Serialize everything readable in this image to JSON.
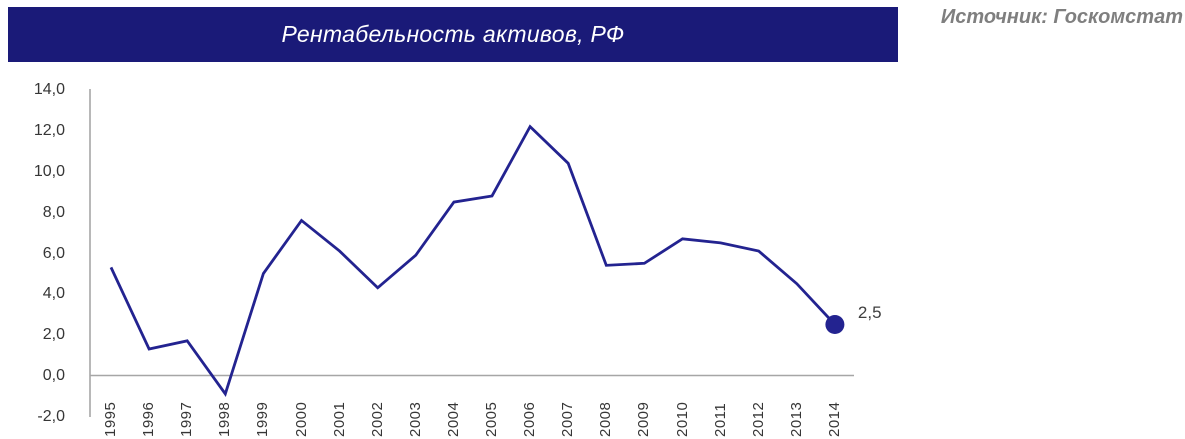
{
  "header": {
    "title": "Рентабельность активов, РФ",
    "source": "Источник: Госкомстат"
  },
  "chart_data": {
    "type": "line",
    "title": "Рентабельность активов, РФ",
    "categories": [
      "1995",
      "1996",
      "1997",
      "1998",
      "1999",
      "2000",
      "2001",
      "2002",
      "2003",
      "2004",
      "2005",
      "2006",
      "2007",
      "2008",
      "2009",
      "2010",
      "2011",
      "2012",
      "2013",
      "2014"
    ],
    "values": [
      5.3,
      1.3,
      1.7,
      -0.9,
      5.0,
      7.6,
      6.1,
      4.3,
      5.9,
      8.5,
      8.8,
      12.2,
      10.4,
      5.4,
      5.5,
      6.7,
      6.5,
      6.1,
      4.5,
      2.5
    ],
    "xlabel": "",
    "ylabel": "",
    "ylim": [
      -2,
      14
    ],
    "yticks": [
      14,
      12,
      10,
      8,
      6,
      4,
      2,
      0,
      -2
    ],
    "ytick_labels": [
      "14,0",
      "12,0",
      "10,0",
      "8,0",
      "6,0",
      "4,0",
      "2,0",
      "0,0",
      "-2,0"
    ],
    "grid": "off",
    "legend": "none",
    "last_point_label": "2,5",
    "decimal_separator": ","
  },
  "colors": {
    "title_bar_bg": "#1a1a78",
    "title_text": "#ffffff",
    "line_color": "#232390",
    "marker_color": "#232390",
    "axis_color": "#a6a6a6",
    "source_text": "#7f7f7f",
    "tick_text": "#363636"
  }
}
